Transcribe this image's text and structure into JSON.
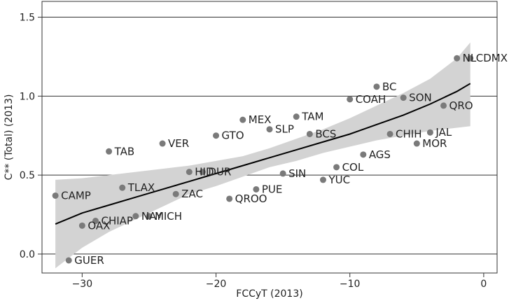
{
  "chart_data": {
    "type": "scatter",
    "title": "",
    "xlabel": "FCCyT (2013)",
    "ylabel": "C** (Total) (2013)",
    "xlim": [
      -33,
      1
    ],
    "ylim": [
      -0.12,
      1.6
    ],
    "xticks": [
      -30,
      -20,
      -10,
      0
    ],
    "xtick_labels": [
      "−30",
      "−20",
      "−10",
      "0"
    ],
    "yticks": [
      0.0,
      0.5,
      1.0,
      1.5
    ],
    "ytick_labels": [
      "0.0",
      "0.5",
      "1.0",
      "1.5"
    ],
    "grid": "horizontal",
    "colors": {
      "point": "#7a7a7a",
      "band": "#d3d3d3",
      "fit": "#000000",
      "grid": "#333333"
    },
    "points": [
      {
        "label": "NL",
        "x": -2,
        "y": 1.24
      },
      {
        "label": "CDMX",
        "x": -1,
        "y": 1.24
      },
      {
        "label": "BC",
        "x": -8,
        "y": 1.06
      },
      {
        "label": "COAH",
        "x": -10,
        "y": 0.98
      },
      {
        "label": "SON",
        "x": -6,
        "y": 0.99
      },
      {
        "label": "QRO",
        "x": -3,
        "y": 0.94
      },
      {
        "label": "TAM",
        "x": -14,
        "y": 0.87
      },
      {
        "label": "MEX",
        "x": -18,
        "y": 0.85
      },
      {
        "label": "SLP",
        "x": -16,
        "y": 0.79
      },
      {
        "label": "BCS",
        "x": -13,
        "y": 0.76
      },
      {
        "label": "GTO",
        "x": -20,
        "y": 0.75
      },
      {
        "label": "VER",
        "x": -24,
        "y": 0.7
      },
      {
        "label": "TAB",
        "x": -28,
        "y": 0.65
      },
      {
        "label": "CHIH",
        "x": -7,
        "y": 0.76
      },
      {
        "label": "JAL",
        "x": -4,
        "y": 0.77
      },
      {
        "label": "MOR",
        "x": -5,
        "y": 0.7
      },
      {
        "label": "AGS",
        "x": -9,
        "y": 0.63
      },
      {
        "label": "COL",
        "x": -11,
        "y": 0.55
      },
      {
        "label": "HID",
        "x": -22,
        "y": 0.52
      },
      {
        "label": "DUR",
        "x": -21,
        "y": 0.52
      },
      {
        "label": "SIN",
        "x": -15,
        "y": 0.51
      },
      {
        "label": "YUC",
        "x": -12,
        "y": 0.47
      },
      {
        "label": "PUE",
        "x": -17,
        "y": 0.41
      },
      {
        "label": "TLAX",
        "x": -27,
        "y": 0.42
      },
      {
        "label": "ZAC",
        "x": -23,
        "y": 0.38
      },
      {
        "label": "QROO",
        "x": -19,
        "y": 0.35
      },
      {
        "label": "CAMP",
        "x": -32,
        "y": 0.37
      },
      {
        "label": "NAY",
        "x": -26,
        "y": 0.24
      },
      {
        "label": "MICH",
        "x": -25,
        "y": 0.24
      },
      {
        "label": "CHIAP",
        "x": -29,
        "y": 0.21
      },
      {
        "label": "OAX",
        "x": -30,
        "y": 0.18
      },
      {
        "label": "GUER",
        "x": -31,
        "y": -0.04
      }
    ],
    "fit_line": {
      "x": [
        -32,
        -30,
        -28,
        -26,
        -24,
        -22,
        -20,
        -18,
        -16,
        -14,
        -12,
        -10,
        -8,
        -6,
        -4,
        -2,
        -1
      ],
      "y": [
        0.19,
        0.26,
        0.31,
        0.36,
        0.41,
        0.46,
        0.51,
        0.56,
        0.61,
        0.66,
        0.71,
        0.76,
        0.82,
        0.88,
        0.95,
        1.03,
        1.08
      ]
    },
    "confidence_band": {
      "x": [
        -32,
        -30,
        -28,
        -26,
        -24,
        -22,
        -20,
        -18,
        -16,
        -14,
        -12,
        -10,
        -8,
        -6,
        -4,
        -2,
        -1
      ],
      "lower": [
        -0.09,
        0.04,
        0.14,
        0.22,
        0.3,
        0.38,
        0.43,
        0.49,
        0.55,
        0.59,
        0.64,
        0.68,
        0.72,
        0.75,
        0.78,
        0.8,
        0.81
      ],
      "upper": [
        0.47,
        0.48,
        0.5,
        0.52,
        0.54,
        0.56,
        0.59,
        0.62,
        0.67,
        0.73,
        0.79,
        0.86,
        0.94,
        1.02,
        1.11,
        1.24,
        1.34
      ]
    }
  }
}
